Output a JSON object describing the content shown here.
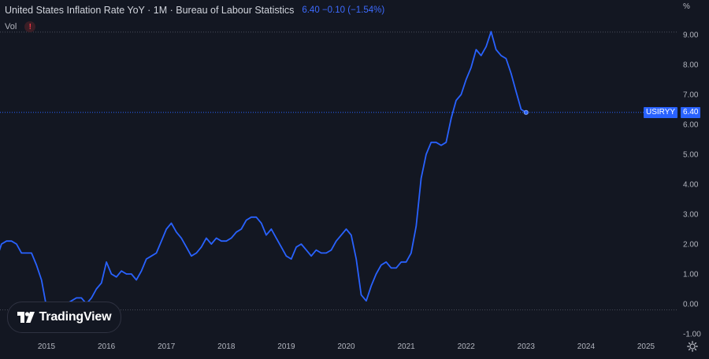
{
  "legend": {
    "title": "United States Inflation Rate YoY · 1M · Bureau of Labour Statistics",
    "last_value": "6.40",
    "change": "−0.10",
    "change_pct": "(−1.54%)",
    "vol_label": "Vol",
    "vol_icon": "alert-icon",
    "vol_icon_glyph": "!"
  },
  "axis": {
    "unit_label": "%",
    "y_ticks": [
      "9.00",
      "8.00",
      "7.00",
      "6.00",
      "5.00",
      "4.00",
      "3.00",
      "2.00",
      "1.00",
      "0.00",
      "-1.00"
    ],
    "x_ticks": [
      "2015",
      "2016",
      "2017",
      "2018",
      "2019",
      "2020",
      "2021",
      "2022",
      "2023",
      "2024",
      "2025"
    ]
  },
  "price_label": {
    "symbol": "USIRYY",
    "value": "6.40"
  },
  "logo": {
    "text": "TradingView"
  },
  "colors": {
    "background": "#131722",
    "line": "#2962ff",
    "grid_dotted": "#4a4e5a",
    "text": "#d1d4dc",
    "axis_text": "#b2b5be"
  },
  "chart_data": {
    "type": "line",
    "title": "United States Inflation Rate YoY · 1M · Bureau of Labour Statistics",
    "ylabel": "%",
    "ylim": [
      -1.2,
      9.6
    ],
    "x_range": [
      "2014-03",
      "2025-08"
    ],
    "series": [
      {
        "name": "USIRYY",
        "x": [
          "2014-03",
          "2014-04",
          "2014-05",
          "2014-06",
          "2014-07",
          "2014-08",
          "2014-09",
          "2014-10",
          "2014-11",
          "2014-12",
          "2015-01",
          "2015-02",
          "2015-03",
          "2015-04",
          "2015-05",
          "2015-06",
          "2015-07",
          "2015-08",
          "2015-09",
          "2015-10",
          "2015-11",
          "2015-12",
          "2016-01",
          "2016-02",
          "2016-03",
          "2016-04",
          "2016-05",
          "2016-06",
          "2016-07",
          "2016-08",
          "2016-09",
          "2016-10",
          "2016-11",
          "2016-12",
          "2017-01",
          "2017-02",
          "2017-03",
          "2017-04",
          "2017-05",
          "2017-06",
          "2017-07",
          "2017-08",
          "2017-09",
          "2017-10",
          "2017-11",
          "2017-12",
          "2018-01",
          "2018-02",
          "2018-03",
          "2018-04",
          "2018-05",
          "2018-06",
          "2018-07",
          "2018-08",
          "2018-09",
          "2018-10",
          "2018-11",
          "2018-12",
          "2019-01",
          "2019-02",
          "2019-03",
          "2019-04",
          "2019-05",
          "2019-06",
          "2019-07",
          "2019-08",
          "2019-09",
          "2019-10",
          "2019-11",
          "2019-12",
          "2020-01",
          "2020-02",
          "2020-03",
          "2020-04",
          "2020-05",
          "2020-06",
          "2020-07",
          "2020-08",
          "2020-09",
          "2020-10",
          "2020-11",
          "2020-12",
          "2021-01",
          "2021-02",
          "2021-03",
          "2021-04",
          "2021-05",
          "2021-06",
          "2021-07",
          "2021-08",
          "2021-09",
          "2021-10",
          "2021-11",
          "2021-12",
          "2022-01",
          "2022-02",
          "2022-03",
          "2022-04",
          "2022-05",
          "2022-06",
          "2022-07",
          "2022-08",
          "2022-09",
          "2022-10",
          "2022-11",
          "2022-12",
          "2023-01"
        ],
        "y": [
          1.5,
          2.0,
          2.1,
          2.1,
          2.0,
          1.7,
          1.7,
          1.7,
          1.3,
          0.8,
          -0.1,
          0.0,
          -0.1,
          -0.2,
          0.0,
          0.1,
          0.2,
          0.2,
          0.0,
          0.2,
          0.5,
          0.7,
          1.4,
          1.0,
          0.9,
          1.1,
          1.0,
          1.0,
          0.8,
          1.1,
          1.5,
          1.6,
          1.7,
          2.1,
          2.5,
          2.7,
          2.4,
          2.2,
          1.9,
          1.6,
          1.7,
          1.9,
          2.2,
          2.0,
          2.2,
          2.1,
          2.1,
          2.2,
          2.4,
          2.5,
          2.8,
          2.9,
          2.9,
          2.7,
          2.3,
          2.5,
          2.2,
          1.9,
          1.6,
          1.5,
          1.9,
          2.0,
          1.8,
          1.6,
          1.8,
          1.7,
          1.7,
          1.8,
          2.1,
          2.3,
          2.5,
          2.3,
          1.5,
          0.3,
          0.1,
          0.6,
          1.0,
          1.3,
          1.4,
          1.2,
          1.2,
          1.4,
          1.4,
          1.7,
          2.6,
          4.2,
          5.0,
          5.4,
          5.4,
          5.3,
          5.4,
          6.2,
          6.8,
          7.0,
          7.5,
          7.9,
          8.5,
          8.3,
          8.6,
          9.1,
          8.5,
          8.3,
          8.2,
          7.7,
          7.1,
          6.5,
          6.4
        ]
      }
    ],
    "current_value": 6.4
  }
}
